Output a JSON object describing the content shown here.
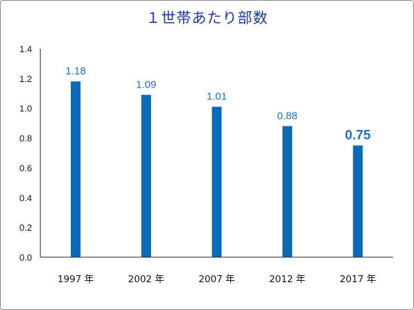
{
  "chart_data": {
    "type": "bar",
    "title": "１世帯あたり部数",
    "categories": [
      "1997 年",
      "2002 年",
      "2007 年",
      "2012 年",
      "2017 年"
    ],
    "values": [
      1.18,
      1.09,
      1.01,
      0.88,
      0.75
    ],
    "data_labels": [
      "1.18",
      "1.09",
      "1.01",
      "0.88",
      "0.75"
    ],
    "highlighted_index": 4,
    "ylim": [
      0,
      1.4
    ],
    "yticks": [
      0.0,
      0.2,
      0.4,
      0.6,
      0.8,
      1.0,
      1.2,
      1.4
    ],
    "ytick_labels": [
      "0.0",
      "0.2",
      "0.4",
      "0.6",
      "0.8",
      "1.0",
      "1.2",
      "1.4"
    ],
    "xlabel": "",
    "ylabel": "",
    "grid": false,
    "legend": "none",
    "bar_color": "#0b69b7",
    "label_color": "#1f6fb8",
    "title_color": "#1f3b8f"
  }
}
